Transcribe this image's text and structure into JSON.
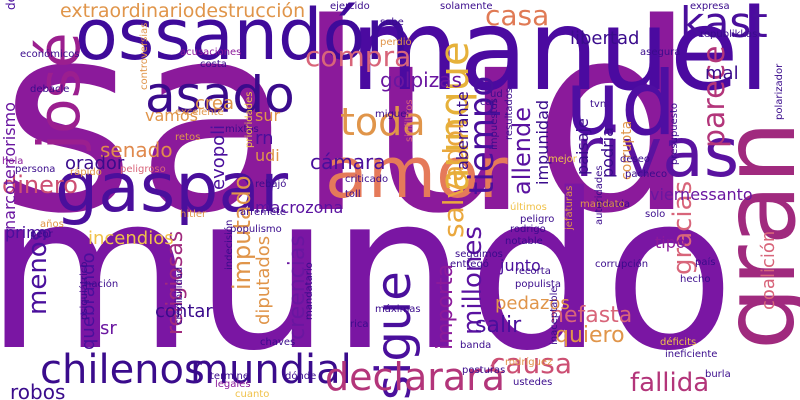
{
  "words": [
    {
      "text": "salud",
      "color": "#8b1a9b"
    },
    {
      "text": "mundo",
      "color": "#7a16a3"
    },
    {
      "text": "manuel",
      "color": "#4b0aa0"
    },
    {
      "text": "ossandón",
      "color": "#3f0a9a"
    },
    {
      "text": "amor",
      "color": "#e57a5a"
    },
    {
      "text": "gaspar",
      "color": "#4a0f9c"
    },
    {
      "text": "rivas",
      "color": "#5a12a0"
    },
    {
      "text": "ud",
      "color": "#4f0ea2"
    },
    {
      "text": "josé",
      "color": "#9b1f8f"
    },
    {
      "text": "gran",
      "color": "#a02a7e"
    },
    {
      "text": "asado",
      "color": "#3a0b8c"
    },
    {
      "text": "kast",
      "color": "#4a0f9c"
    },
    {
      "text": "aunque",
      "color": "#e6b13a"
    },
    {
      "text": "tiempo",
      "color": "#4a0f9c"
    },
    {
      "text": "sigue",
      "color": "#4a0f9c"
    },
    {
      "text": "toda",
      "color": "#e0954a"
    },
    {
      "text": "casa",
      "color": "#e07a55"
    },
    {
      "text": "compra",
      "color": "#d8657a"
    },
    {
      "text": "parece",
      "color": "#b3357a"
    },
    {
      "text": "gracias",
      "color": "#d8657a"
    },
    {
      "text": "salvador",
      "color": "#eaa83e"
    },
    {
      "text": "chilenos",
      "color": "#3a0b8c"
    },
    {
      "text": "mundial",
      "color": "#3a0b8c"
    },
    {
      "text": "declarará",
      "color": "#b3357a"
    },
    {
      "text": "fallida",
      "color": "#b3357a"
    },
    {
      "text": "causa",
      "color": "#cc4f73"
    },
    {
      "text": "millones",
      "color": "#5a12a0"
    },
    {
      "text": "menos",
      "color": "#4a0f9c"
    },
    {
      "text": "dinero",
      "color": "#cc4f73"
    },
    {
      "text": "allende",
      "color": "#5a12a0"
    },
    {
      "text": "importa",
      "color": "#8b1a9b"
    },
    {
      "text": "libertad",
      "color": "#3a0b8c"
    },
    {
      "text": "golpizas",
      "color": "#6a16a0"
    },
    {
      "text": "senado",
      "color": "#e08a4e"
    },
    {
      "text": "cámara",
      "color": "#4a0f9c"
    },
    {
      "text": "creencias",
      "color": "#6a16a0"
    },
    {
      "text": "diputados",
      "color": "#e0954a"
    },
    {
      "text": "religiosas",
      "color": "#a02a7e"
    },
    {
      "text": "imputado",
      "color": "#e0954a"
    },
    {
      "text": "macrozona",
      "color": "#5a12a0"
    },
    {
      "text": "incendios",
      "color": "#f0c24a"
    },
    {
      "text": "viernessanto",
      "color": "#6a16a0"
    },
    {
      "text": "coalición",
      "color": "#d8657a"
    },
    {
      "text": "extraordinariodestrucción",
      "color": "#e0954a"
    },
    {
      "text": "narcoterrorismo",
      "color": "#6a16a0"
    },
    {
      "text": "quebrando",
      "color": "#4a0f9c"
    },
    {
      "text": "salir",
      "color": "#4a0f9c"
    },
    {
      "text": "pedazos",
      "color": "#e0954a"
    },
    {
      "text": "nefasta",
      "color": "#d8657a"
    },
    {
      "text": "quiero",
      "color": "#e0954a"
    },
    {
      "text": "contar",
      "color": "#3a0b8c"
    },
    {
      "text": "robos",
      "color": "#3a0b8c"
    },
    {
      "text": "mal",
      "color": "#3a0b8c"
    },
    {
      "text": "crea",
      "color": "#e0954a"
    },
    {
      "text": "sur",
      "color": "#e0954a"
    },
    {
      "text": "rn",
      "color": "#4a0f9c"
    },
    {
      "text": "orador",
      "color": "#3a0b8c"
    },
    {
      "text": "sr",
      "color": "#6a16a0"
    },
    {
      "text": "tipo",
      "color": "#8b1a9b"
    },
    {
      "text": "junto",
      "color": "#4a0f9c"
    },
    {
      "text": "primo",
      "color": "#4a0f9c"
    },
    {
      "text": "udi",
      "color": "#e0954a"
    },
    {
      "text": "vamos",
      "color": "#e0954a"
    },
    {
      "text": "evopoli",
      "color": "#4a0f9c"
    },
    {
      "text": "paisaje",
      "color": "#3a0b8c"
    },
    {
      "text": "podría",
      "color": "#3a0b8c"
    },
    {
      "text": "impunidad",
      "color": "#3a0b8c"
    },
    {
      "text": "corrupta",
      "color": "#e0954a"
    },
    {
      "text": "aberrante",
      "color": "#3a0b8c"
    },
    {
      "text": "destaca",
      "color": "#4a0f9c"
    },
    {
      "text": "ejercido",
      "color": "#3a0b8c"
    },
    {
      "text": "solamente",
      "color": "#3a0b8c"
    },
    {
      "text": "sabe",
      "color": "#3a0b8c"
    },
    {
      "text": "perdió",
      "color": "#e0954a"
    },
    {
      "text": "asegura",
      "color": "#3a0b8c"
    },
    {
      "text": "acusaciones",
      "color": "#8b1a9b"
    },
    {
      "text": "costa",
      "color": "#3a0b8c"
    },
    {
      "text": "mixtos",
      "color": "#3a0b8c"
    },
    {
      "text": "excelente",
      "color": "#e0954a"
    },
    {
      "text": "miguel",
      "color": "#3a0b8c"
    },
    {
      "text": "sinfiltros",
      "color": "#d8657a"
    },
    {
      "text": "impuestos",
      "color": "#3a0b8c"
    },
    {
      "text": "prioridades",
      "color": "#f0c24a"
    },
    {
      "text": "persona",
      "color": "#3a0b8c"
    },
    {
      "text": "rápido",
      "color": "#e0954a"
    },
    {
      "text": "peligroso",
      "color": "#d8657a"
    },
    {
      "text": "hola",
      "color": "#8b1a9b"
    },
    {
      "text": "retos",
      "color": "#e0954a"
    },
    {
      "text": "criticado",
      "color": "#3a0b8c"
    },
    {
      "text": "rebajó",
      "color": "#3a0b8c"
    },
    {
      "text": "toll",
      "color": "#3a0b8c"
    },
    {
      "text": "mejor",
      "color": "#f0c24a"
    },
    {
      "text": "deseo",
      "color": "#3a0b8c"
    },
    {
      "text": "pacheco",
      "color": "#3a0b8c"
    },
    {
      "text": "expresa",
      "color": "#3a0b8c"
    },
    {
      "text": "republikkas",
      "color": "#3a0b8c"
    },
    {
      "text": "polarizador",
      "color": "#3a0b8c"
    },
    {
      "text": "presupuesto",
      "color": "#3a0b8c"
    },
    {
      "text": "arremete",
      "color": "#3a0b8c"
    },
    {
      "text": "hitler",
      "color": "#e0954a"
    },
    {
      "text": "populismo",
      "color": "#3a0b8c"
    },
    {
      "text": "peligro",
      "color": "#3a0b8c"
    },
    {
      "text": "rodrigo",
      "color": "#3a0b8c"
    },
    {
      "text": "últimos",
      "color": "#f0c24a"
    },
    {
      "text": "seguimos",
      "color": "#3a0b8c"
    },
    {
      "text": "entregó",
      "color": "#3a0b8c"
    },
    {
      "text": "notable",
      "color": "#3a0b8c"
    },
    {
      "text": "recorta",
      "color": "#3a0b8c"
    },
    {
      "text": "populista",
      "color": "#3a0b8c"
    },
    {
      "text": "rodríguez",
      "color": "#e0954a"
    },
    {
      "text": "banda",
      "color": "#3a0b8c"
    },
    {
      "text": "posturas",
      "color": "#3a0b8c"
    },
    {
      "text": "ustedes",
      "color": "#3a0b8c"
    },
    {
      "text": "máximas",
      "color": "#3a0b8c"
    },
    {
      "text": "rica",
      "color": "#3a0b8c"
    },
    {
      "text": "dónde",
      "color": "#3a0b8c"
    },
    {
      "text": "chaves",
      "color": "#3a0b8c"
    },
    {
      "text": "mandatario",
      "color": "#3a0b8c"
    },
    {
      "text": "legales",
      "color": "#8b1a9b"
    },
    {
      "text": "cuanto",
      "color": "#f0c24a"
    },
    {
      "text": "termine",
      "color": "#3a0b8c"
    },
    {
      "text": "ineficiente",
      "color": "#3a0b8c"
    },
    {
      "text": "burla",
      "color": "#3a0b8c"
    },
    {
      "text": "déficits",
      "color": "#f0c24a"
    },
    {
      "text": "hecho",
      "color": "#3a0b8c"
    },
    {
      "text": "inaceptable",
      "color": "#3a0b8c"
    },
    {
      "text": "país",
      "color": "#3a0b8c"
    },
    {
      "text": "corrupción",
      "color": "#3a0b8c"
    },
    {
      "text": "autoridades",
      "color": "#3a0b8c"
    },
    {
      "text": "mierda",
      "color": "#3a0b8c"
    },
    {
      "text": "solo",
      "color": "#3a0b8c"
    },
    {
      "text": "nación",
      "color": "#3a0b8c"
    },
    {
      "text": "peor",
      "color": "#3a0b8c"
    },
    {
      "text": "años",
      "color": "#e0954a"
    },
    {
      "text": "psiquiátrico",
      "color": "#3a0b8c"
    },
    {
      "text": "indecisión",
      "color": "#3a0b8c"
    },
    {
      "text": "credibilidad",
      "color": "#3a0b8c"
    },
    {
      "text": "debacle",
      "color": "#3a0b8c"
    },
    {
      "text": "económicos",
      "color": "#3a0b8c"
    },
    {
      "text": "controversias",
      "color": "#e0954a"
    },
    {
      "text": "resultados",
      "color": "#3a0b8c"
    },
    {
      "text": "jefaturas",
      "color": "#e0954a"
    },
    {
      "text": "mandato",
      "color": "#e0954a"
    },
    {
      "text": "cae",
      "color": "#3a0b8c"
    },
    {
      "text": "tvn",
      "color": "#3a0b8c"
    },
    {
      "text": "ud",
      "color": "#3a0b8c"
    }
  ]
}
